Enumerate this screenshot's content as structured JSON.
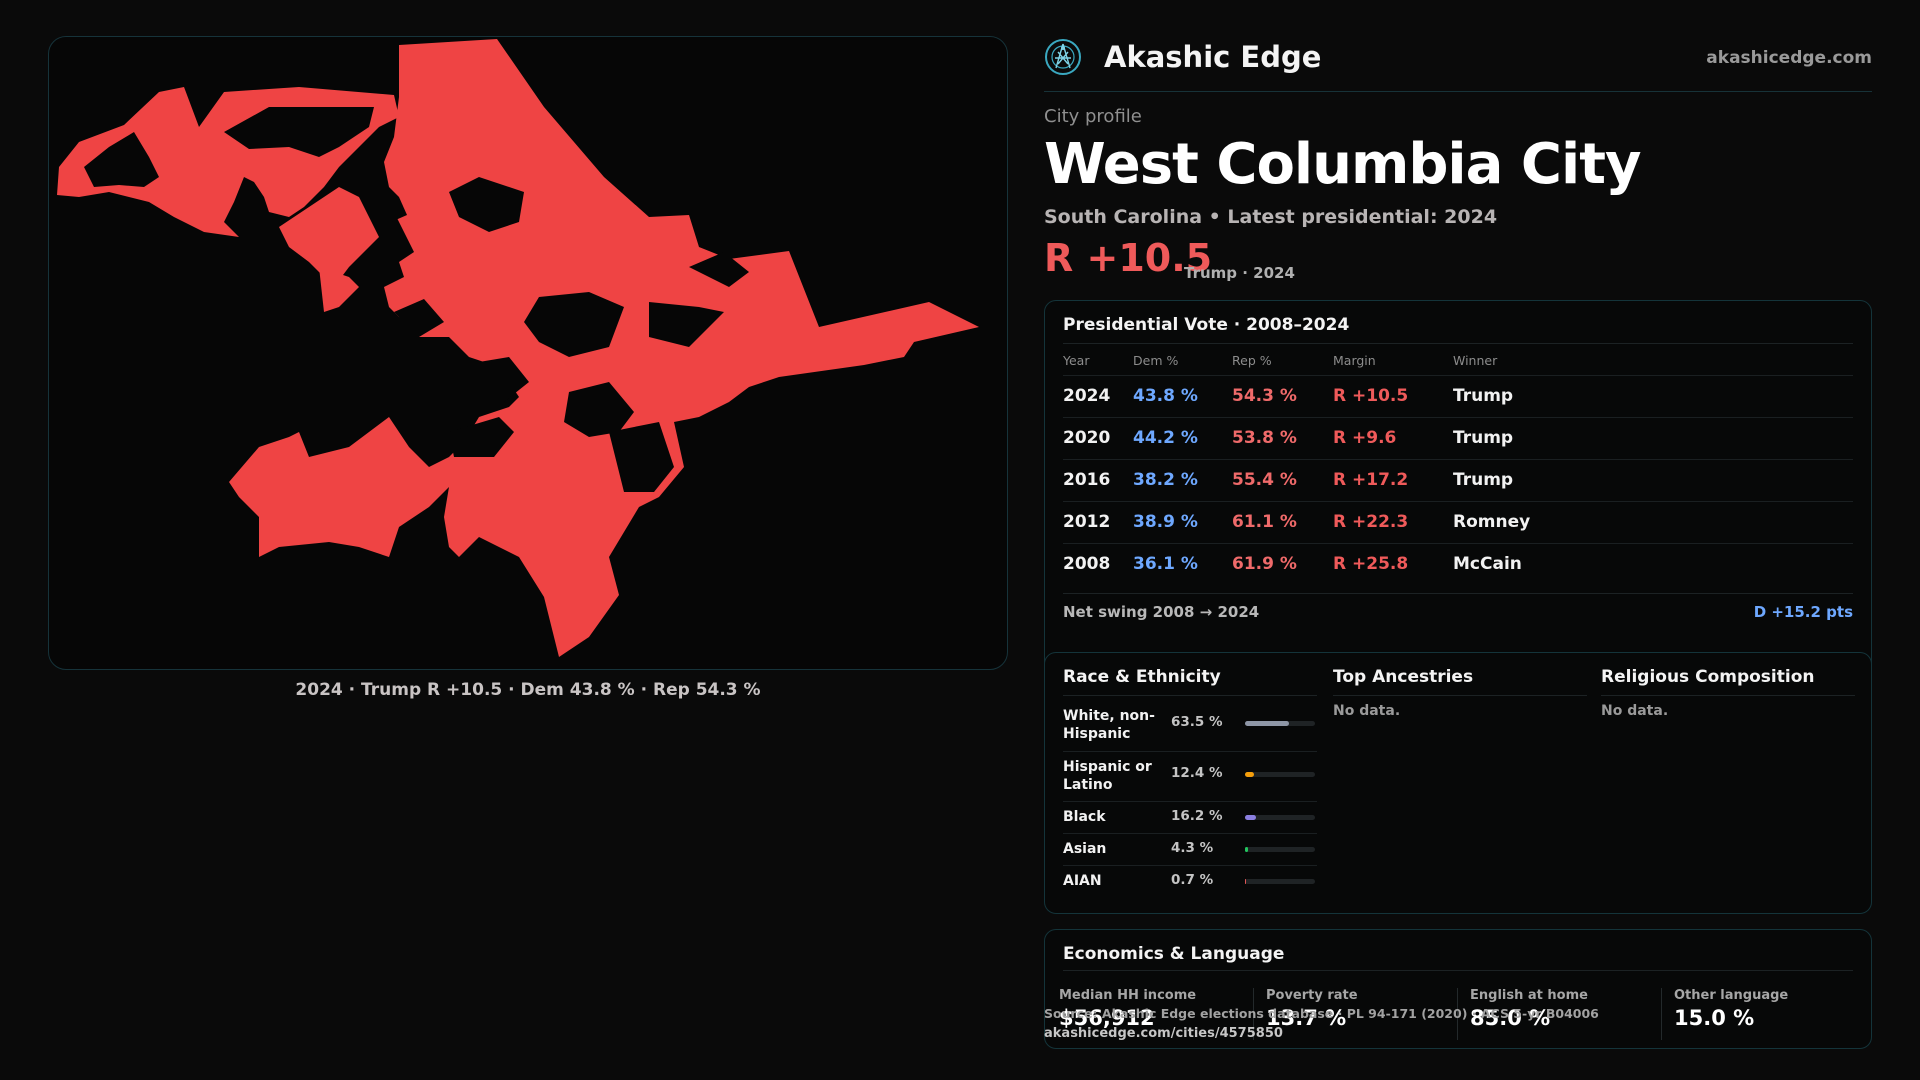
{
  "brand": {
    "name": "Akashic Edge",
    "url": "akashicedge.com",
    "logo_icon": "compass-globe-icon"
  },
  "profile": {
    "label": "City profile",
    "title": "West Columbia City",
    "subtitle": "South Carolina • Latest presidential: 2024",
    "headline_margin": "R +10.5",
    "headline_sub": "Trump · 2024"
  },
  "map": {
    "caption": "2024 · Trump R +10.5 · Dem 43.8 % · Rep 54.3 %",
    "fill_color": "#ef4444"
  },
  "vote": {
    "title": "Presidential Vote · 2008–2024",
    "columns": [
      "Year",
      "Dem %",
      "Rep %",
      "Margin",
      "Winner"
    ],
    "rows": [
      {
        "year": "2024",
        "dem": "43.8 %",
        "rep": "54.3 %",
        "margin": "R +10.5",
        "winner": "Trump"
      },
      {
        "year": "2020",
        "dem": "44.2 %",
        "rep": "53.8 %",
        "margin": "R +9.6",
        "winner": "Trump"
      },
      {
        "year": "2016",
        "dem": "38.2 %",
        "rep": "55.4 %",
        "margin": "R +17.2",
        "winner": "Trump"
      },
      {
        "year": "2012",
        "dem": "38.9 %",
        "rep": "61.1 %",
        "margin": "R +22.3",
        "winner": "Romney"
      },
      {
        "year": "2008",
        "dem": "36.1 %",
        "rep": "61.9 %",
        "margin": "R +25.8",
        "winner": "McCain"
      }
    ],
    "swing_label": "Net swing 2008 → 2024",
    "swing_value": "D +15.2 pts"
  },
  "race": {
    "title": "Race & Ethnicity",
    "rows": [
      {
        "name": "White, non-Hispanic",
        "pct": "63.5 %",
        "value": 63.5,
        "color": "#8e96a6"
      },
      {
        "name": "Hispanic or Latino",
        "pct": "12.4 %",
        "value": 12.4,
        "color": "#f59e0b"
      },
      {
        "name": "Black",
        "pct": "16.2 %",
        "value": 16.2,
        "color": "#8b7fe0"
      },
      {
        "name": "Asian",
        "pct": "4.3 %",
        "value": 4.3,
        "color": "#22c55e"
      },
      {
        "name": "AIAN",
        "pct": "0.7 %",
        "value": 0.7,
        "color": "#e05555"
      }
    ]
  },
  "ancestries": {
    "title": "Top Ancestries",
    "empty": "No data."
  },
  "religion": {
    "title": "Religious Composition",
    "empty": "No data."
  },
  "econ": {
    "title": "Economics & Language",
    "cells": [
      {
        "label": "Median HH income",
        "value": "$56,912"
      },
      {
        "label": "Poverty rate",
        "value": "13.7 %"
      },
      {
        "label": "English at home",
        "value": "85.0 %"
      },
      {
        "label": "Other language",
        "value": "15.0 %"
      }
    ]
  },
  "source": {
    "text": "Source: Akashic Edge elections database · PL 94-171 (2020) · ACS 5-yr B04006",
    "url": "akashicedge.com/cities/4575850"
  }
}
